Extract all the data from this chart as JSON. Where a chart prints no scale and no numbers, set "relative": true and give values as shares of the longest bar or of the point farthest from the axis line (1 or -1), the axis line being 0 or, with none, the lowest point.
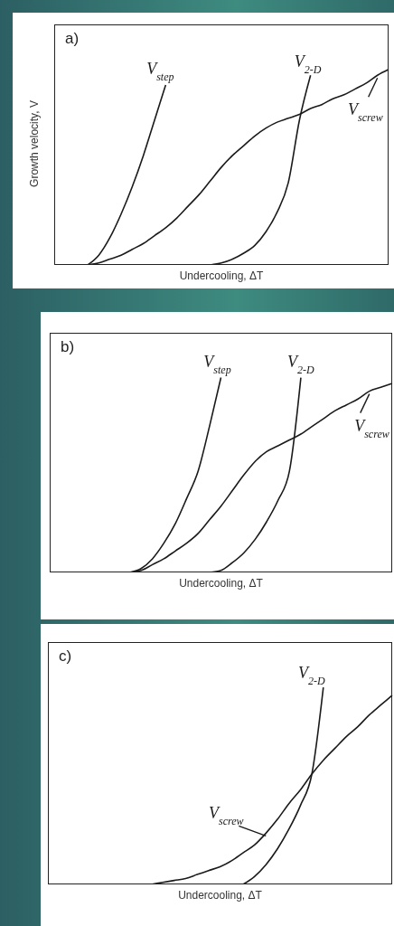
{
  "chart_data": [
    {
      "type": "line",
      "title": "a)",
      "xlabel": "Undercooling, ΔT",
      "ylabel": "Growth velocity, V",
      "relative": true,
      "marker": "none",
      "categories": [
        null,
        null,
        null,
        null,
        null,
        null,
        null,
        null,
        null,
        null,
        null,
        null,
        null,
        null,
        null,
        null,
        null,
        null,
        null,
        null,
        null,
        null,
        null,
        null,
        null,
        null,
        null,
        null,
        null,
        null,
        null
      ],
      "series": [
        {
          "name": "V$_{step}$",
          "color": "#1a1a1a",
          "values": [
            null,
            null,
            null,
            0,
            0.05,
            0.14,
            0.26,
            0.4,
            0.56,
            0.74,
            0.92,
            null,
            null,
            null,
            null,
            null,
            null,
            null,
            null,
            null,
            null,
            null,
            null,
            null,
            null,
            null,
            null,
            null,
            null,
            null,
            null
          ]
        },
        {
          "name": "V$_{2-D}$",
          "color": "#1a1a1a",
          "values": [
            null,
            null,
            null,
            null,
            null,
            null,
            null,
            null,
            null,
            null,
            null,
            null,
            null,
            null,
            0,
            0.01,
            0.03,
            0.06,
            0.1,
            0.17,
            0.27,
            0.42,
            0.74,
            0.97,
            null,
            null,
            null,
            null,
            null,
            null,
            null
          ]
        },
        {
          "name": "V$_{screw}$",
          "color": "#1a1a1a",
          "values": [
            null,
            null,
            null,
            0,
            0.01,
            0.03,
            0.05,
            0.08,
            0.11,
            0.15,
            0.19,
            0.24,
            0.3,
            0.36,
            0.43,
            0.5,
            0.56,
            0.61,
            0.66,
            0.7,
            0.73,
            0.75,
            0.77,
            0.8,
            0.82,
            0.85,
            0.87,
            0.9,
            0.93,
            0.97,
            1
          ]
        }
      ]
    },
    {
      "type": "line",
      "title": "b)",
      "xlabel": "Undercooling, ΔT",
      "relative": true,
      "marker": "none",
      "categories": [
        null,
        null,
        null,
        null,
        null,
        null,
        null,
        null,
        null,
        null,
        null,
        null,
        null,
        null,
        null,
        null,
        null,
        null,
        null,
        null,
        null,
        null,
        null,
        null,
        null,
        null,
        null,
        null,
        null,
        null,
        null
      ],
      "series": [
        {
          "name": "V$_{step}$",
          "color": "#1a1a1a",
          "values": [
            null,
            null,
            null,
            null,
            null,
            null,
            null,
            0,
            0.02,
            0.07,
            0.15,
            0.25,
            0.38,
            0.52,
            0.75,
            1,
            null,
            null,
            null,
            null,
            null,
            null,
            null,
            null,
            null,
            null,
            null,
            null,
            null,
            null,
            null
          ]
        },
        {
          "name": "V$_{2-D}$",
          "color": "#1a1a1a",
          "values": [
            null,
            null,
            null,
            null,
            null,
            null,
            null,
            null,
            null,
            null,
            null,
            null,
            null,
            null,
            0,
            0.01,
            0.05,
            0.1,
            0.17,
            0.26,
            0.37,
            0.52,
            1,
            null,
            null,
            null,
            null,
            null,
            null,
            null,
            null
          ]
        },
        {
          "name": "V$_{screw}$",
          "color": "#1a1a1a",
          "values": [
            null,
            null,
            null,
            null,
            null,
            null,
            null,
            0,
            0.01,
            0.04,
            0.07,
            0.11,
            0.15,
            0.2,
            0.27,
            0.34,
            0.42,
            0.5,
            0.57,
            0.62,
            0.65,
            0.68,
            0.71,
            0.75,
            0.79,
            0.83,
            0.86,
            0.89,
            0.93,
            0.95,
            0.97
          ]
        }
      ]
    },
    {
      "type": "line",
      "title": "c)",
      "xlabel": "Undercooling, ΔT",
      "relative": true,
      "marker": "none",
      "categories": [
        null,
        null,
        null,
        null,
        null,
        null,
        null,
        null,
        null,
        null,
        null,
        null,
        null,
        null,
        null,
        null,
        null,
        null,
        null,
        null,
        null,
        null,
        null,
        null,
        null,
        null,
        null,
        null,
        null,
        null,
        null
      ],
      "series": [
        {
          "name": "V$_{2-D}$",
          "color": "#1a1a1a",
          "values": [
            null,
            null,
            null,
            null,
            null,
            null,
            null,
            null,
            null,
            null,
            null,
            null,
            null,
            null,
            null,
            null,
            null,
            0,
            0.04,
            0.1,
            0.18,
            0.28,
            0.4,
            0.56,
            1,
            null,
            null,
            null,
            null,
            null,
            null
          ]
        },
        {
          "name": "V$_{screw}$",
          "color": "#1a1a1a",
          "values": [
            null,
            null,
            null,
            null,
            null,
            null,
            null,
            null,
            null,
            0,
            0.01,
            0.02,
            0.03,
            0.05,
            0.07,
            0.09,
            0.12,
            0.16,
            0.2,
            0.26,
            0.33,
            0.41,
            0.48,
            0.56,
            0.63,
            0.69,
            0.75,
            0.8,
            0.86,
            0.91,
            0.96
          ]
        }
      ]
    }
  ]
}
